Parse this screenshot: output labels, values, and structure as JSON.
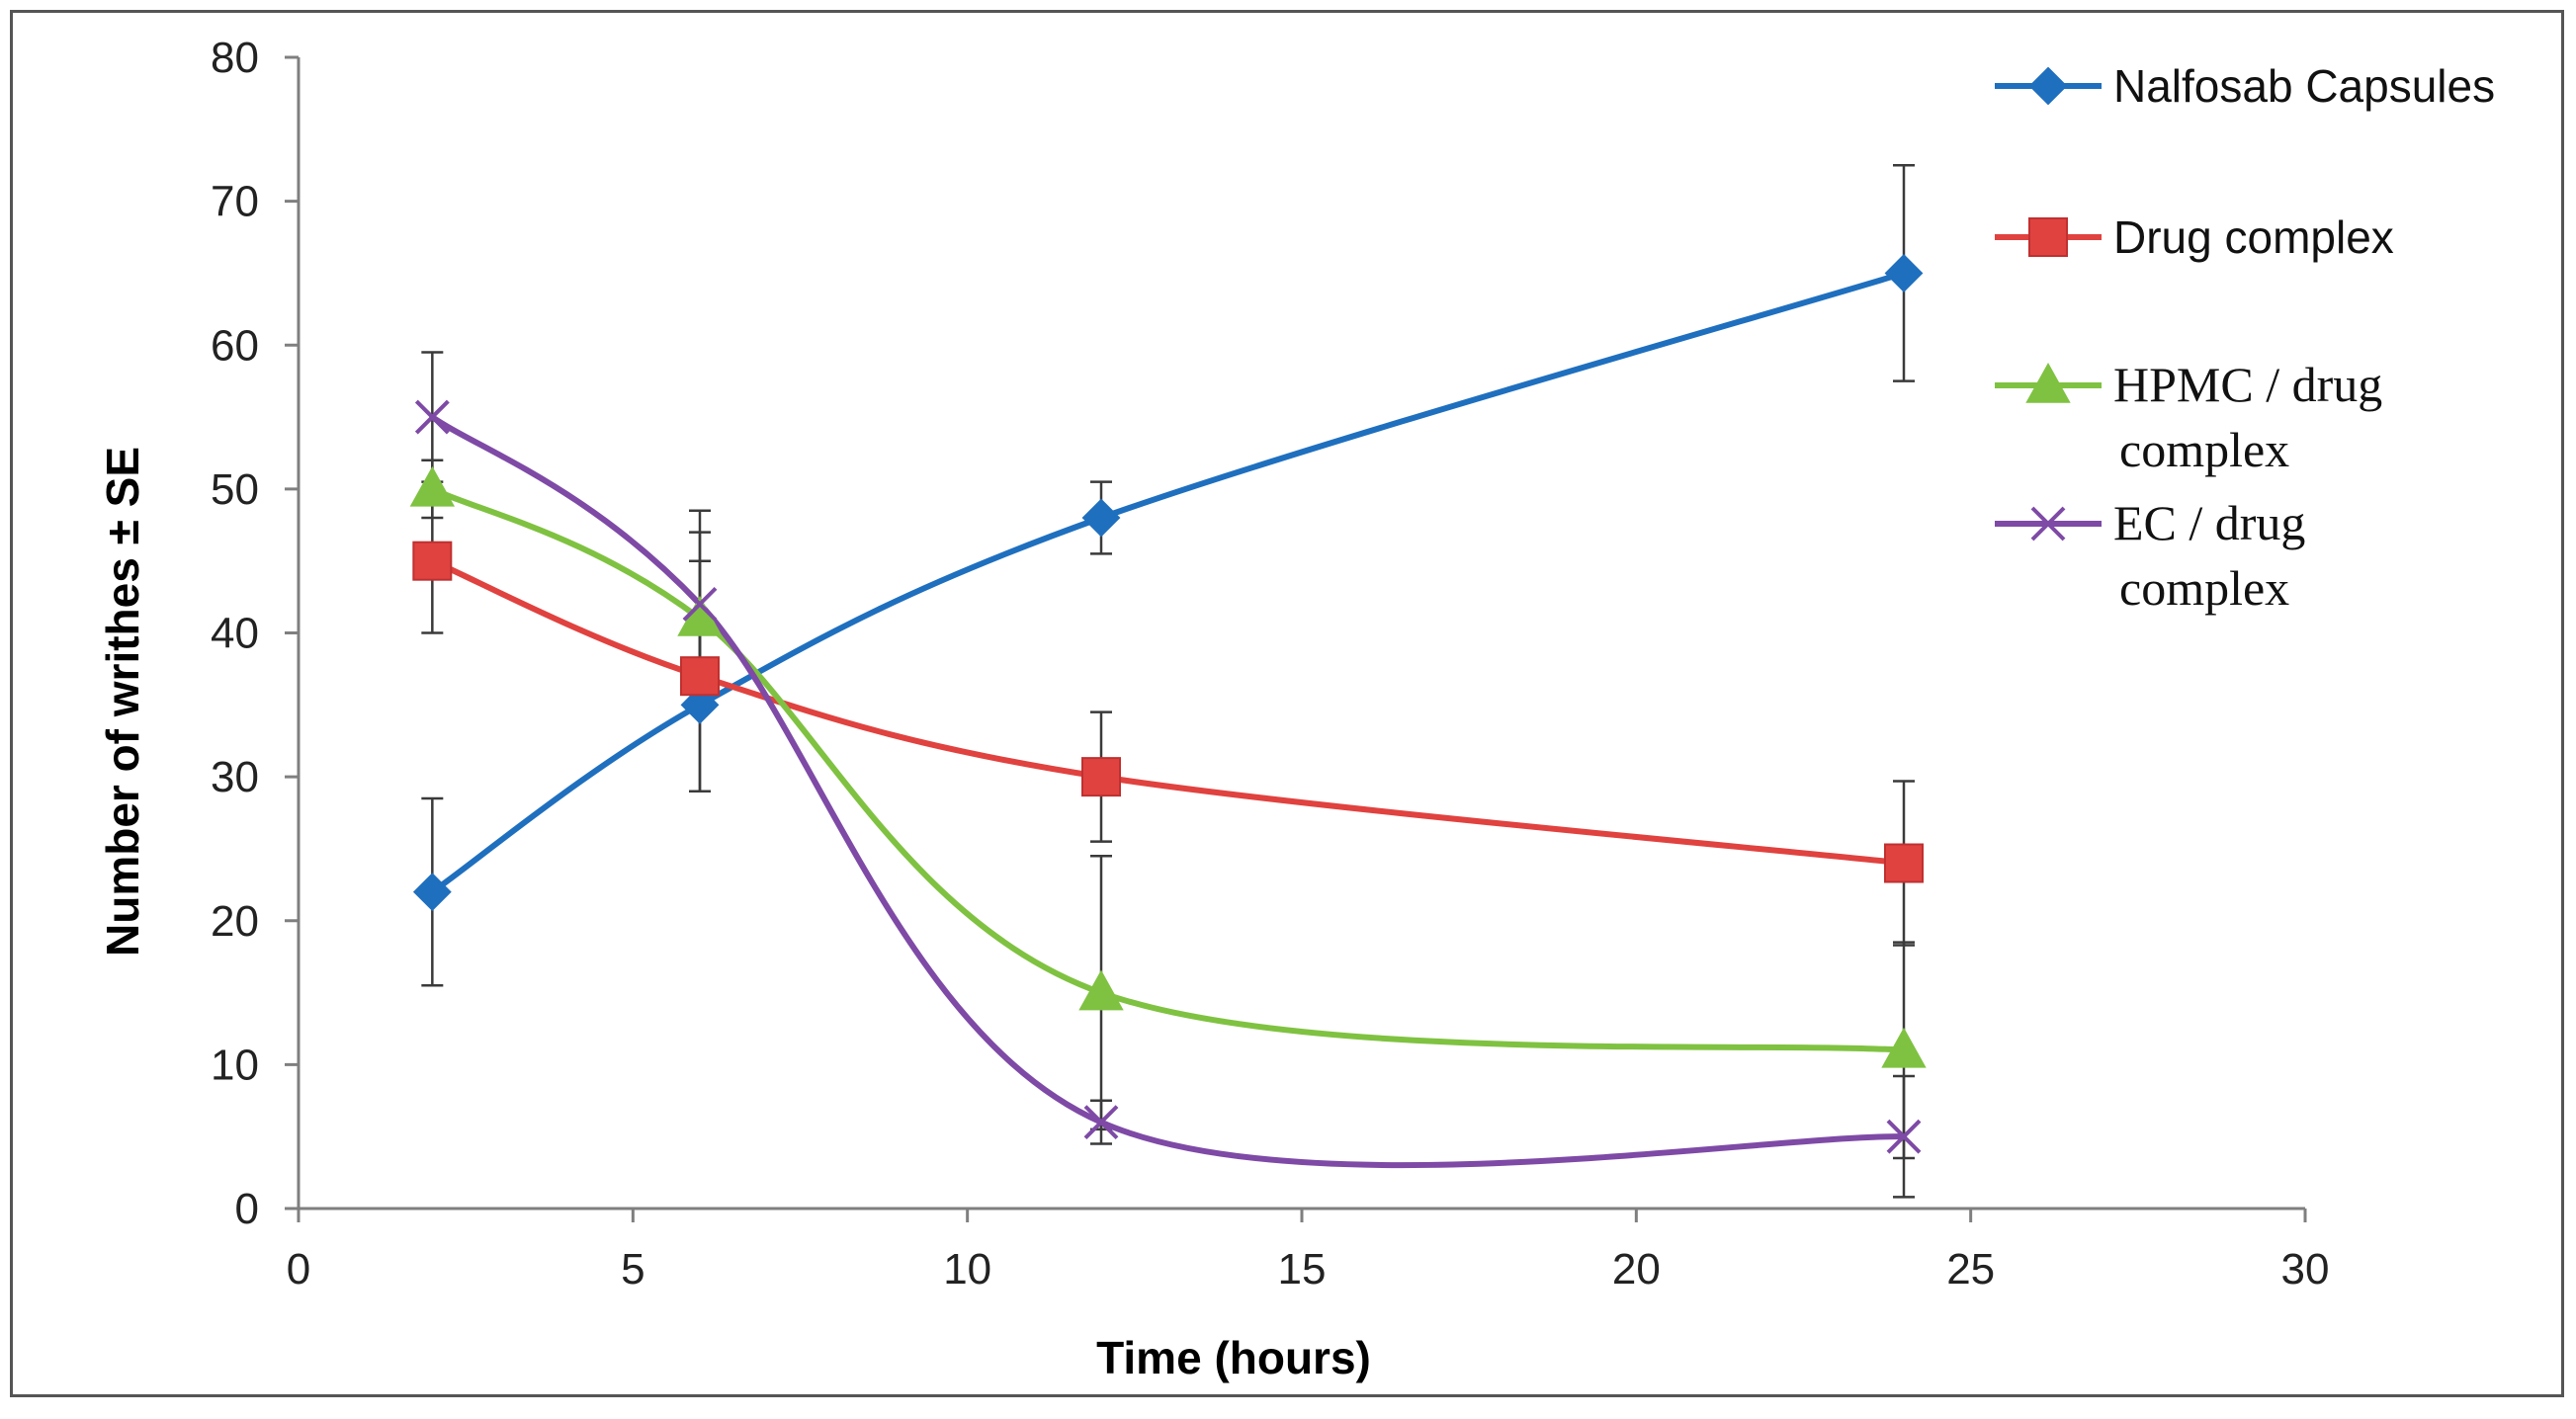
{
  "chart_data": {
    "type": "line",
    "title": "",
    "xlabel": "Time (hours)",
    "ylabel": "Number of writhes ± SE",
    "xlim": [
      0,
      30
    ],
    "ylim": [
      0,
      80
    ],
    "xticks": [
      0,
      5,
      10,
      15,
      20,
      25,
      30
    ],
    "yticks": [
      0,
      10,
      20,
      30,
      40,
      50,
      60,
      70,
      80
    ],
    "xtick_labels": [
      "0",
      "5",
      "10",
      "15",
      "20",
      "25",
      "30"
    ],
    "ytick_labels": [
      "0",
      "10",
      "20",
      "30",
      "40",
      "50",
      "60",
      "70",
      "80"
    ],
    "grid": false,
    "legend_position": "right",
    "x": [
      2,
      6,
      12,
      24
    ],
    "series": [
      {
        "name": "Nalfosab Capsules",
        "legend_lines": [
          "Nalfosab Capsules"
        ],
        "color": "#1f6fbf",
        "marker": "diamond",
        "values": [
          22,
          35,
          48,
          65
        ],
        "error": [
          6.5,
          6,
          2.5,
          7.5
        ]
      },
      {
        "name": "Drug complex",
        "legend_lines": [
          "Drug complex"
        ],
        "color": "#e0423f",
        "marker": "square",
        "values": [
          45,
          37,
          30,
          24
        ],
        "error": [
          5,
          8,
          4.5,
          5.7
        ]
      },
      {
        "name": "HPMC / drug complex",
        "legend_lines": [
          "HPMC / drug",
          "complex"
        ],
        "color": "#7fc241",
        "marker": "triangle",
        "values": [
          50,
          41,
          15,
          11
        ],
        "error": [
          2,
          6,
          9.5,
          7.5
        ]
      },
      {
        "name": "EC / drug complex",
        "legend_lines": [
          "EC / drug",
          "complex"
        ],
        "color": "#7e4aa6",
        "marker": "x",
        "values": [
          55,
          42,
          6,
          5
        ],
        "error": [
          4.5,
          6.5,
          1.5,
          4.2
        ]
      }
    ]
  }
}
